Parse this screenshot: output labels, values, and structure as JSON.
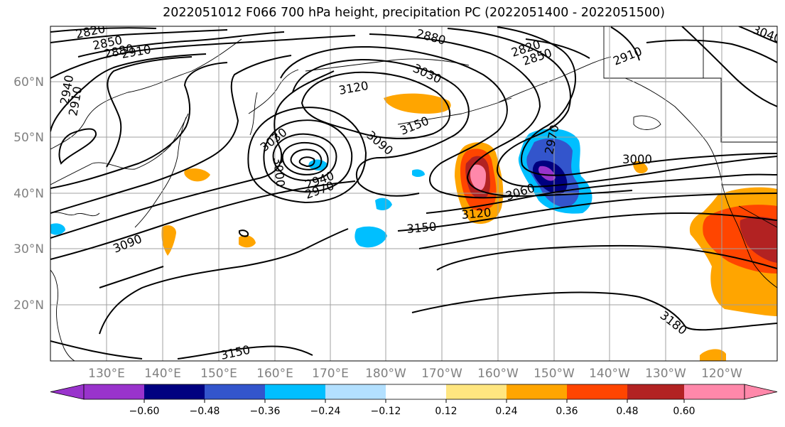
{
  "title": "2022051012 F066 700 hPa height, precipitation PC (2022051400 - 2022051500)",
  "lat_labels": [
    "60°N",
    "50°N",
    "40°N",
    "30°N",
    "20°N"
  ],
  "lon_labels": [
    "130°E",
    "140°E",
    "150°E",
    "160°E",
    "170°E",
    "180°W",
    "170°W",
    "160°W",
    "150°W",
    "140°W",
    "130°W",
    "120°W"
  ],
  "contour_labels": [
    "2820",
    "2850",
    "2880",
    "2910",
    "2880",
    "2820",
    "2850",
    "2910",
    "2940",
    "2910",
    "3030",
    "3120",
    "3150",
    "3090",
    "3030",
    "3000",
    "2940",
    "2970",
    "2970",
    "3000",
    "3060",
    "3120",
    "3150",
    "3090",
    "3180",
    "3150",
    "3040"
  ],
  "colorbar": {
    "colors": [
      "#9933cc",
      "#000080",
      "#3355cc",
      "#00bfff",
      "#b3e0ff",
      "#ffffff",
      "#ffe680",
      "#ffa500",
      "#ff4500",
      "#b22222",
      "#ff88aa"
    ],
    "tick_labels": [
      "−0.60",
      "−0.48",
      "−0.36",
      "−0.24",
      "−0.12",
      "0.12",
      "0.24",
      "0.36",
      "0.48",
      "0.60"
    ]
  },
  "colors": {
    "background": "#ffffff",
    "grid": "#a0a0a0",
    "contour": "#000000",
    "tick_label": "#808080"
  }
}
